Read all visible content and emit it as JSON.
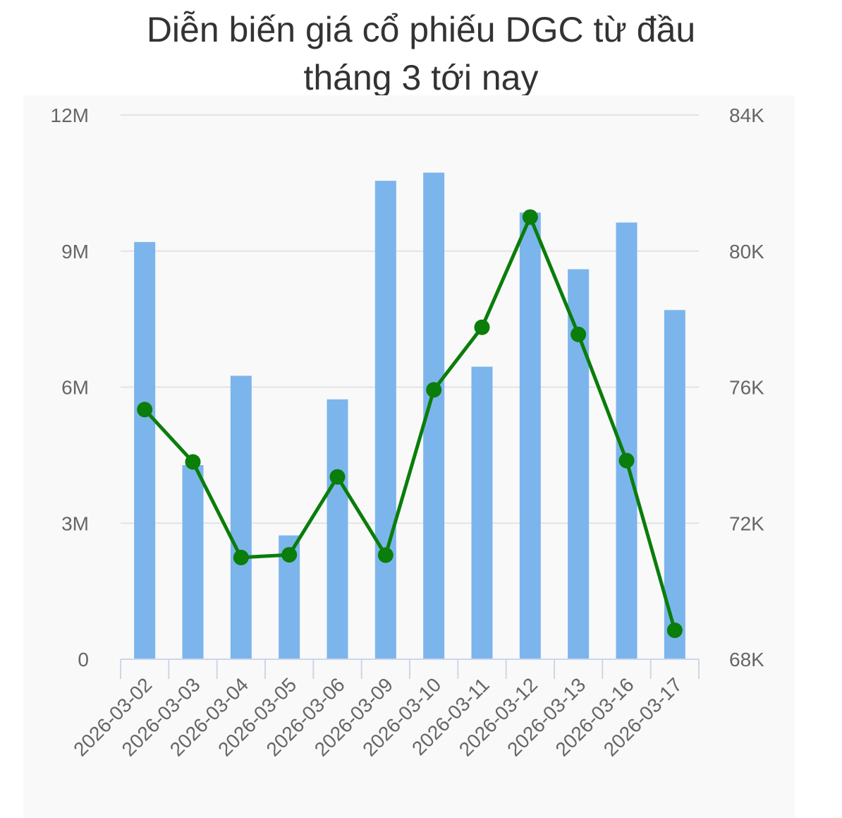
{
  "title": {
    "line1": "Diễn biến giá cổ phiếu DGC từ đầu",
    "line2": "tháng 3 tới nay"
  },
  "colors": {
    "plot_background": "#f9f9f9",
    "bar": "#7cb5ec",
    "line": "#0a7d0a",
    "gridline": "#e3e3e3",
    "axis_line": "#ccd6eb",
    "tick_text": "#666666",
    "title_text": "#333333"
  },
  "chart_data": {
    "type": "bar",
    "title": "Diễn biến giá cổ phiếu DGC từ đầu tháng 3 tới nay",
    "categories": [
      "2026-03-02",
      "2026-03-03",
      "2026-03-04",
      "2026-03-05",
      "2026-03-06",
      "2026-03-09",
      "2026-03-10",
      "2026-03-11",
      "2026-03-12",
      "2026-03-13",
      "2026-03-16",
      "2026-03-17"
    ],
    "series": [
      {
        "type": "bar",
        "axis": "left",
        "values": [
          9200000,
          4280000,
          6250000,
          2730000,
          5730000,
          10550000,
          10730000,
          6450000,
          9850000,
          8600000,
          9630000,
          7700000
        ]
      },
      {
        "type": "line",
        "axis": "right",
        "values": [
          75340,
          73800,
          70990,
          71070,
          73360,
          71060,
          75920,
          77760,
          81000,
          77550,
          73840,
          68850
        ]
      }
    ],
    "y_left": {
      "ylim": [
        0,
        12000000
      ],
      "ticks": [
        0,
        3000000,
        6000000,
        9000000,
        12000000
      ],
      "tick_labels": [
        "0",
        "3M",
        "6M",
        "9M",
        "12M"
      ]
    },
    "y_right": {
      "ylim": [
        68000,
        84000
      ],
      "ticks": [
        68000,
        72000,
        76000,
        80000,
        84000
      ],
      "tick_labels": [
        "68K",
        "72K",
        "76K",
        "80K",
        "84K"
      ]
    },
    "xlabel": "",
    "ylabel": "",
    "grid": true,
    "legend": "none"
  }
}
